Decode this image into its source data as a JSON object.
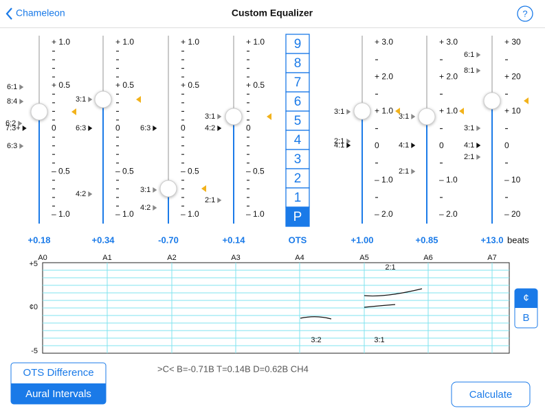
{
  "nav": {
    "back": "Chameleon",
    "title": "Custom Equalizer",
    "help": "?"
  },
  "sliders": [
    {
      "scale": [
        "+ 1.0",
        "+ 0.5",
        "0",
        "– 0.5",
        "– 1.0"
      ],
      "value": "+0.18",
      "markers": [
        "6:1",
        "8:4",
        "6:2",
        "7:3+",
        "6:3",
        "3:1",
        "6:3",
        "4:2"
      ]
    },
    {
      "scale": [
        "+ 1.0",
        "+ 0.5",
        "0",
        "– 0.5",
        "– 1.0"
      ],
      "value": "+0.34",
      "markers": [
        "6:3"
      ]
    },
    {
      "scale": [
        "+ 1.0",
        "+ 0.5",
        "0",
        "– 0.5",
        "– 1.0"
      ],
      "value": "-0.70",
      "markers": [
        "3:1",
        "4:2",
        "3:1",
        "4:2",
        "2:1"
      ]
    },
    {
      "scale": [
        "+ 1.0",
        "+ 0.5",
        "0",
        "– 0.5",
        "– 1.0"
      ],
      "value": "+0.14"
    },
    {
      "scale": [
        "+ 3.0",
        "+ 2.0",
        "+ 1.0",
        "0",
        "– 1.0",
        "– 2.0"
      ],
      "value": "+1.00",
      "markers": [
        "3:1",
        "2:1",
        "4:1",
        "3:1",
        "4:1",
        "2:1"
      ]
    },
    {
      "scale": [
        "+ 3.0",
        "+ 2.0",
        "+ 1.0",
        "0",
        "– 1.0",
        "– 2.0"
      ],
      "value": "+0.85",
      "markers": [
        "6:1",
        "8:1",
        "3:1",
        "4:1",
        "2:1"
      ]
    },
    {
      "scale": [
        "+ 30",
        "+ 20",
        "+ 10",
        "0",
        "– 10",
        "– 20"
      ],
      "value": "+13.0"
    }
  ],
  "units": "beats",
  "ots": {
    "buttons": [
      "9",
      "8",
      "7",
      "6",
      "5",
      "4",
      "3",
      "2",
      "1",
      "P"
    ],
    "label": "OTS"
  },
  "graph": {
    "x_labels": [
      "A0",
      "A1",
      "A2",
      "A3",
      "A4",
      "A5",
      "A6",
      "A7"
    ],
    "y_labels": [
      "+5",
      "¢0",
      "-5"
    ],
    "annotations": [
      "2:1",
      "3:2",
      "3:1"
    ]
  },
  "unit_toggle": [
    "¢",
    "B"
  ],
  "mode_buttons": [
    "OTS Difference",
    "Aural Intervals"
  ],
  "status": ">C< B=-0.71B T=0.14B D=0.62B CH4",
  "calculate": "Calculate"
}
